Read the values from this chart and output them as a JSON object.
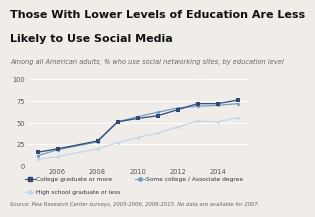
{
  "title_line1": "Those With Lower Levels of Education Are Less",
  "title_line2": "Likely to Use Social Media",
  "subtitle": "Among all American adults, % who use social networking sites, by education level",
  "source": "Source: Pew Research Center surveys, 2005-2006, 2008-2015. No data are available for 2007.",
  "years_college": [
    2005,
    2006,
    2008,
    2009,
    2010,
    2011,
    2012,
    2013,
    2014,
    2015
  ],
  "values_college": [
    16,
    20,
    29,
    51,
    55,
    58,
    65,
    72,
    72,
    76
  ],
  "years_some_college": [
    2005,
    2006,
    2008,
    2009,
    2010,
    2011,
    2012,
    2013,
    2014,
    2015
  ],
  "values_some_college": [
    12,
    19,
    28,
    51,
    57,
    62,
    67,
    69,
    70,
    72
  ],
  "years_hs": [
    2005,
    2006,
    2008,
    2009,
    2010,
    2011,
    2012,
    2013,
    2014,
    2015
  ],
  "values_hs": [
    8,
    11,
    20,
    27,
    33,
    38,
    45,
    52,
    51,
    56
  ],
  "color_college": "#2d4a7a",
  "color_some_college": "#6b9ec8",
  "color_hs": "#c0d8ec",
  "ylim": [
    0,
    100
  ],
  "yticks": [
    0,
    25,
    50,
    75,
    100
  ],
  "xticks": [
    2006,
    2008,
    2010,
    2012,
    2014
  ],
  "bg_color": "#f0ede8",
  "title_fontsize": 8.0,
  "subtitle_fontsize": 4.8,
  "tick_fontsize": 4.8,
  "legend_fontsize": 4.2,
  "source_fontsize": 3.8
}
